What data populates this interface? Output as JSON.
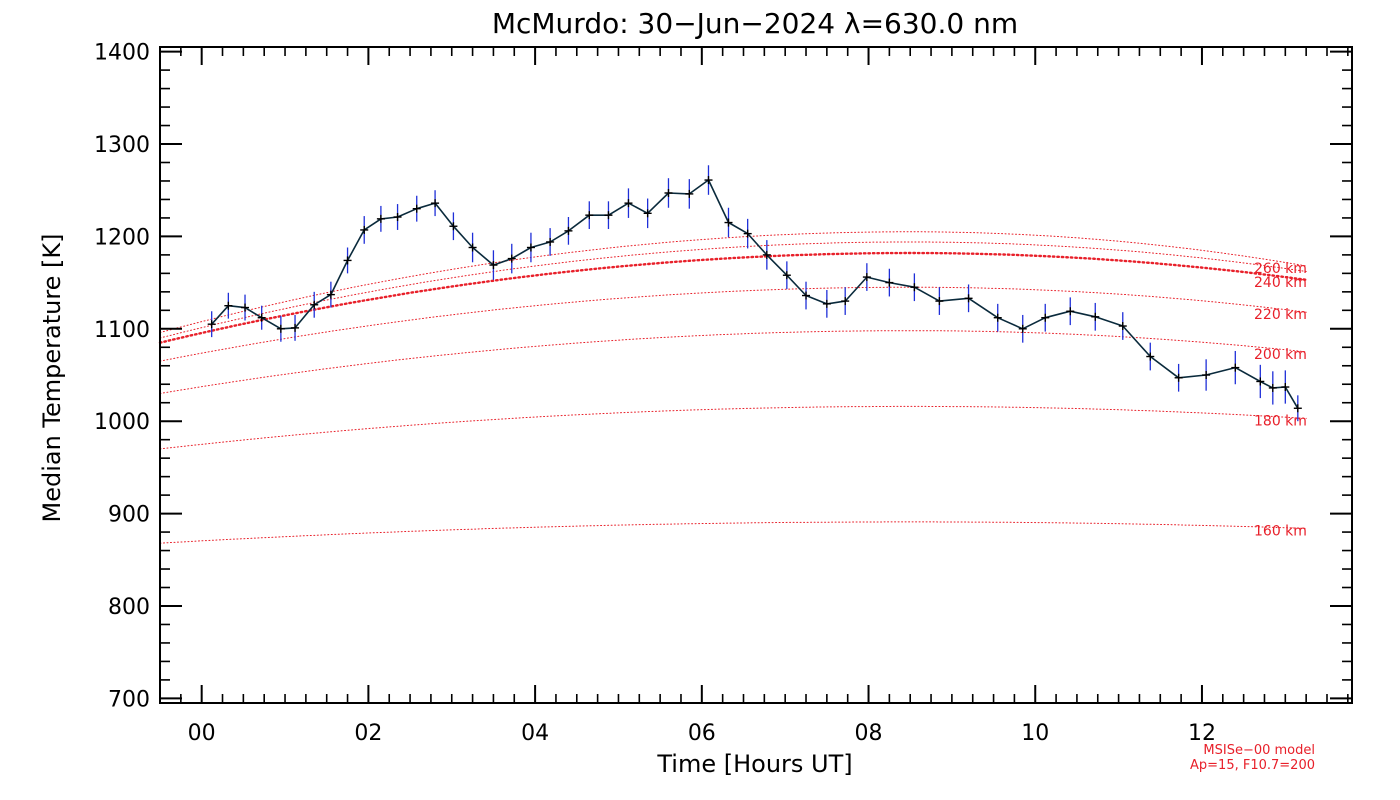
{
  "chart_data": {
    "type": "line",
    "title": "McMurdo: 30−Jun−2024 λ=630.0 nm",
    "xlabel": "Time [Hours UT]",
    "ylabel": "Median Temperature [K]",
    "xlim": [
      -0.5,
      13.8
    ],
    "ylim": [
      695,
      1405
    ],
    "x_ticks": [
      0,
      2,
      4,
      6,
      8,
      10,
      12
    ],
    "x_tick_labels": [
      "00",
      "02",
      "04",
      "06",
      "08",
      "10",
      "12"
    ],
    "y_ticks": [
      700,
      800,
      900,
      1000,
      1100,
      1200,
      1300,
      1400
    ],
    "y_tick_labels": [
      "700",
      "800",
      "900",
      "1000",
      "1100",
      "1200",
      "1300",
      "1400"
    ],
    "grid": false,
    "colors": {
      "measurement": "#0a2a3c",
      "error_bar": "#1f2fd8",
      "model": "#e8202a",
      "axes": "#000000"
    },
    "measurements": {
      "x": [
        0.12,
        0.32,
        0.52,
        0.72,
        0.95,
        1.12,
        1.35,
        1.55,
        1.75,
        1.95,
        2.15,
        2.35,
        2.58,
        2.8,
        3.02,
        3.25,
        3.5,
        3.72,
        3.95,
        4.18,
        4.4,
        4.65,
        4.88,
        5.12,
        5.35,
        5.6,
        5.85,
        6.08,
        6.32,
        6.55,
        6.78,
        7.02,
        7.25,
        7.5,
        7.72,
        7.98,
        8.25,
        8.55,
        8.85,
        9.2,
        9.55,
        9.85,
        10.12,
        10.42,
        10.72,
        11.05,
        11.38,
        11.72,
        12.05,
        12.4,
        12.7,
        12.85,
        13.0,
        13.15
      ],
      "y": [
        1105,
        1125,
        1123,
        1112,
        1100,
        1101,
        1126,
        1137,
        1174,
        1207,
        1219,
        1221,
        1230,
        1236,
        1211,
        1188,
        1169,
        1176,
        1188,
        1194,
        1206,
        1223,
        1223,
        1236,
        1225,
        1247,
        1246,
        1261,
        1215,
        1203,
        1180,
        1158,
        1136,
        1127,
        1130,
        1156,
        1150,
        1145,
        1130,
        1133,
        1112,
        1100,
        1112,
        1119,
        1113,
        1103,
        1070,
        1047,
        1050,
        1058,
        1043,
        1036,
        1037,
        1014
      ],
      "error": [
        14,
        14,
        14,
        13,
        14,
        14,
        14,
        14,
        14,
        15,
        14,
        14,
        14,
        14,
        15,
        16,
        16,
        16,
        16,
        15,
        15,
        15,
        15,
        16,
        16,
        16,
        16,
        16,
        16,
        16,
        16,
        15,
        15,
        15,
        15,
        15,
        15,
        15,
        15,
        15,
        15,
        15,
        15,
        15,
        15,
        15,
        15,
        15,
        17,
        18,
        18,
        18,
        18,
        14
      ]
    },
    "model_curves": [
      {
        "label": "160 km",
        "y_start": 868,
        "y_peak": 891,
        "y_end": 884,
        "bold": false
      },
      {
        "label": "180 km",
        "y_start": 970,
        "y_peak": 1016,
        "y_end": 1003,
        "bold": false
      },
      {
        "label": "200 km",
        "y_start": 1030,
        "y_peak": 1098,
        "y_end": 1075,
        "bold": false
      },
      {
        "label": "220 km",
        "y_start": 1065,
        "y_peak": 1145,
        "y_end": 1118,
        "bold": false
      },
      {
        "label": "240 km",
        "y_start": 1085,
        "y_peak": 1182,
        "y_end": 1153,
        "bold": true
      },
      {
        "label": "",
        "y_start": 1090,
        "y_peak": 1194,
        "y_end": 1162,
        "bold": false
      },
      {
        "label": "260 km",
        "y_start": 1096,
        "y_peak": 1205,
        "y_end": 1168,
        "bold": false
      }
    ],
    "model_note": [
      "MSISe−00 model",
      "Ap=15, F10.7=200"
    ]
  }
}
